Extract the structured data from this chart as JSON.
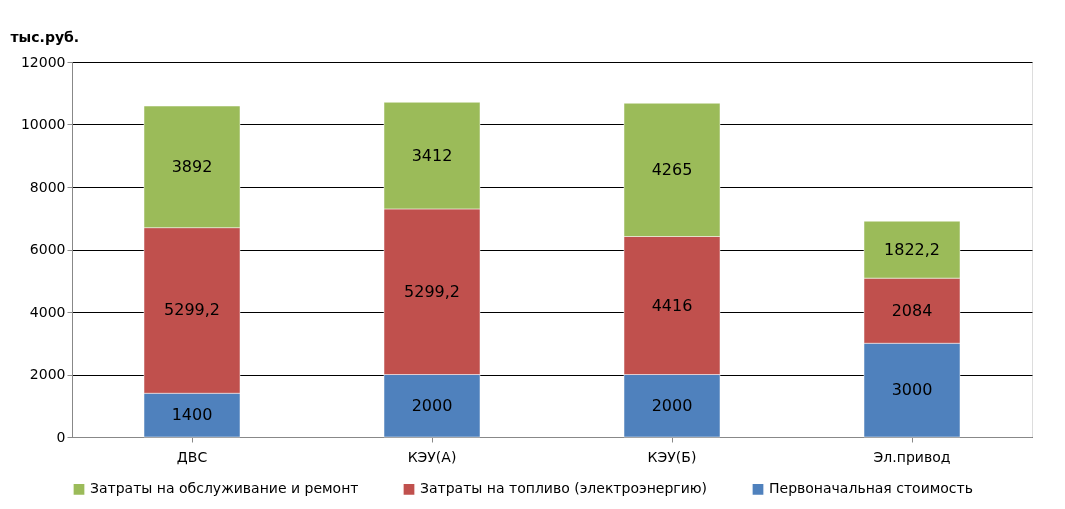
{
  "chart_data": {
    "type": "bar",
    "stacked": true,
    "ylabel": "тыс.руб.",
    "categories": [
      "ДВС",
      "КЭУ(А)",
      "КЭУ(Б)",
      "Эл.привод"
    ],
    "series": [
      {
        "name": "Первоначальная стоимость",
        "color": "#4f81bd",
        "values": [
          1400,
          2000,
          2000,
          3000
        ],
        "value_labels": [
          "1400",
          "2000",
          "2000",
          "3000"
        ]
      },
      {
        "name": "Затраты на топливо (электроэнергию)",
        "color": "#c0504d",
        "values": [
          5299.2,
          5299.2,
          4416,
          2084
        ],
        "value_labels": [
          "5299,2",
          "5299,2",
          "4416",
          "2084"
        ]
      },
      {
        "name": "Затраты на обслуживание и ремонт",
        "color": "#9bbb59",
        "values": [
          3892,
          3412,
          4265,
          1822.2
        ],
        "value_labels": [
          "3892",
          "3412",
          "4265",
          "1822,2"
        ]
      }
    ],
    "ylim": [
      0,
      12000
    ],
    "yticks": [
      0,
      2000,
      4000,
      6000,
      8000,
      10000,
      12000
    ],
    "grid": "y",
    "legend": "bottom"
  }
}
